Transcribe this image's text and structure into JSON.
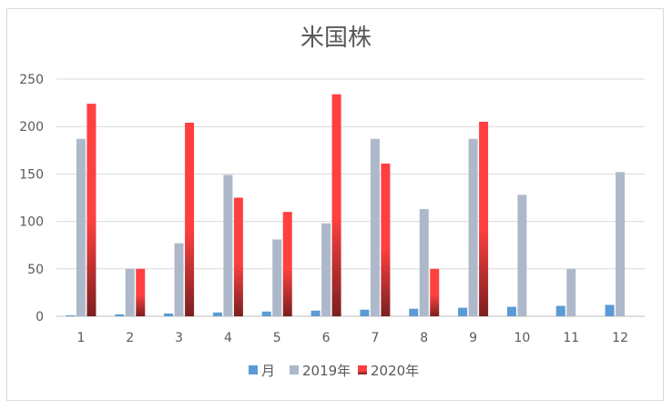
{
  "chart_data": {
    "type": "bar",
    "title": "米国株",
    "categories": [
      "1",
      "2",
      "3",
      "4",
      "5",
      "6",
      "7",
      "8",
      "9",
      "10",
      "11",
      "12"
    ],
    "ylim": [
      0,
      250
    ],
    "yticks": [
      0,
      50,
      100,
      150,
      200,
      250
    ],
    "grid": true,
    "legend_position": "bottom",
    "series": [
      {
        "name": "月",
        "color": "#5b9bd5",
        "values": [
          1,
          2,
          3,
          4,
          5,
          6,
          7,
          8,
          9,
          10,
          11,
          12
        ]
      },
      {
        "name": "2019年",
        "color": "#adb9ca",
        "values": [
          187,
          50,
          77,
          149,
          81,
          98,
          187,
          113,
          187,
          128,
          50,
          152
        ]
      },
      {
        "name": "2020年",
        "color": "#ff4040",
        "gradient_bottom": "#7b2020",
        "values": [
          224,
          50,
          204,
          125,
          110,
          234,
          161,
          50,
          205,
          null,
          null,
          null
        ]
      }
    ]
  }
}
